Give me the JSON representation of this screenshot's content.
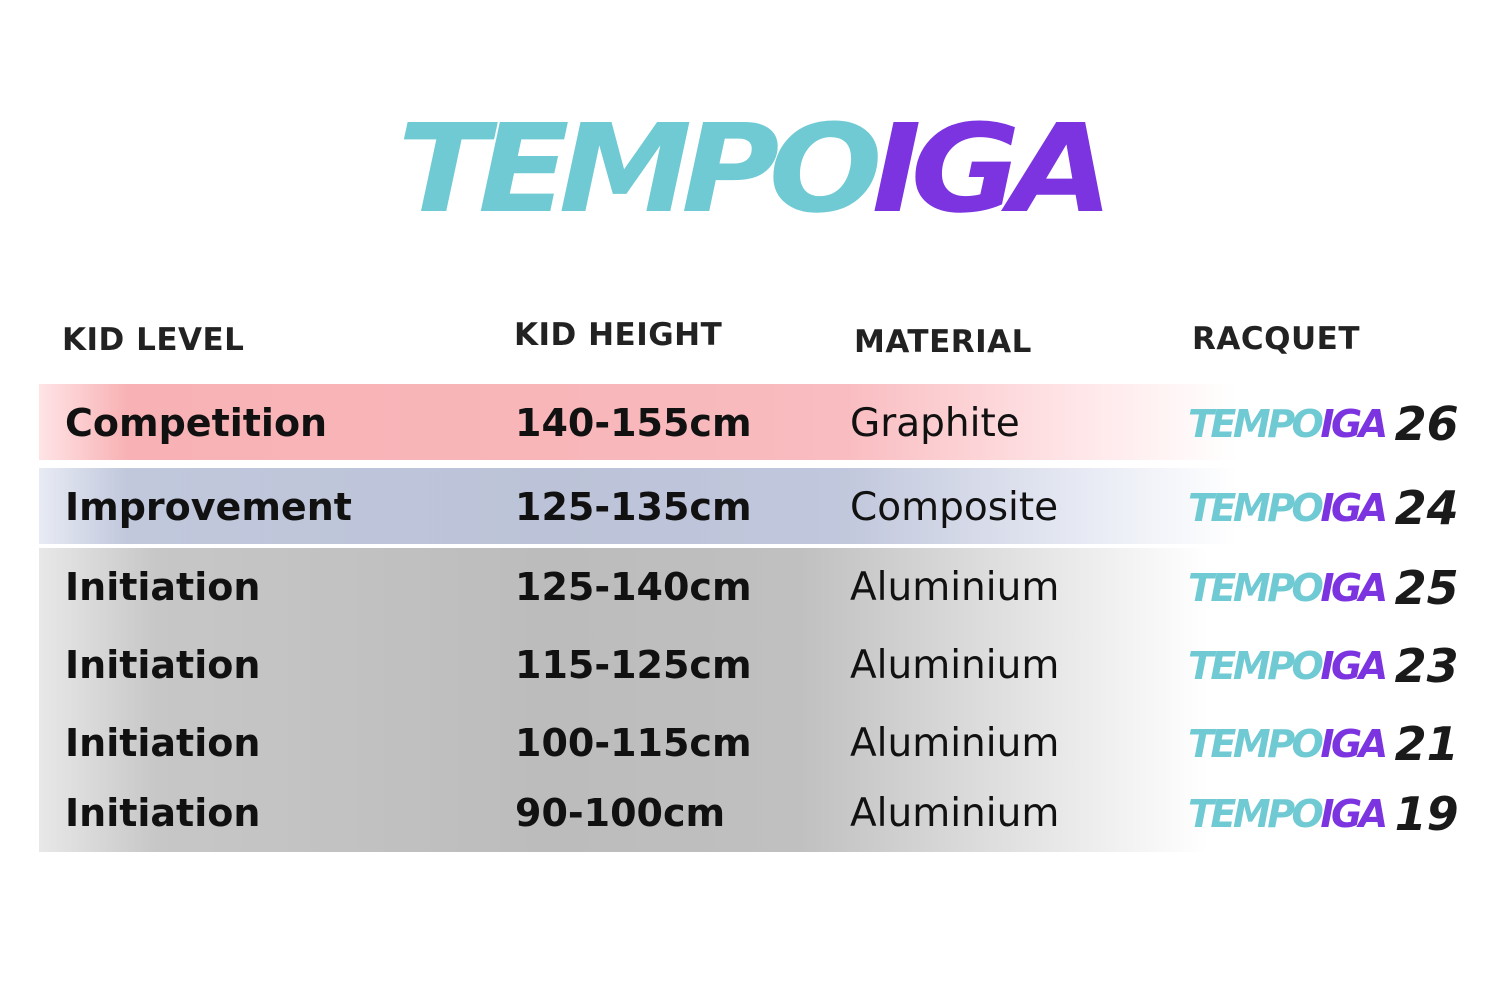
{
  "logo": {
    "part1": "TEMPO",
    "part2": "IGA"
  },
  "headers": {
    "kid_level": "KID LEVEL",
    "kid_height": "KID HEIGHT",
    "material": "MATERIAL",
    "racquet": "RACQUET"
  },
  "rows": [
    {
      "level": "Competition",
      "height": "140-155cm",
      "material": "Graphite",
      "racquet_brand_1": "TEMPO",
      "racquet_brand_2": "IGA",
      "racquet_size": "26"
    },
    {
      "level": "Improvement",
      "height": "125-135cm",
      "material": "Composite",
      "racquet_brand_1": "TEMPO",
      "racquet_brand_2": "IGA",
      "racquet_size": "24"
    },
    {
      "level": "Initiation",
      "height": "125-140cm",
      "material": "Aluminium",
      "racquet_brand_1": "TEMPO",
      "racquet_brand_2": "IGA",
      "racquet_size": "25"
    },
    {
      "level": "Initiation",
      "height": "115-125cm",
      "material": "Aluminium",
      "racquet_brand_1": "TEMPO",
      "racquet_brand_2": "IGA",
      "racquet_size": "23"
    },
    {
      "level": "Initiation",
      "height": "100-115cm",
      "material": "Aluminium",
      "racquet_brand_1": "TEMPO",
      "racquet_brand_2": "IGA",
      "racquet_size": "21"
    },
    {
      "level": "Initiation",
      "height": "90-100cm",
      "material": "Aluminium",
      "racquet_brand_1": "TEMPO",
      "racquet_brand_2": "IGA",
      "racquet_size": "19"
    }
  ],
  "colors": {
    "brand_teal": "#6FCAD3",
    "brand_purple": "#7B34E0",
    "competition_row": "#F8B6B9",
    "improvement_row": "#BCC3D8",
    "initiation_row": "#BCBCBC"
  }
}
